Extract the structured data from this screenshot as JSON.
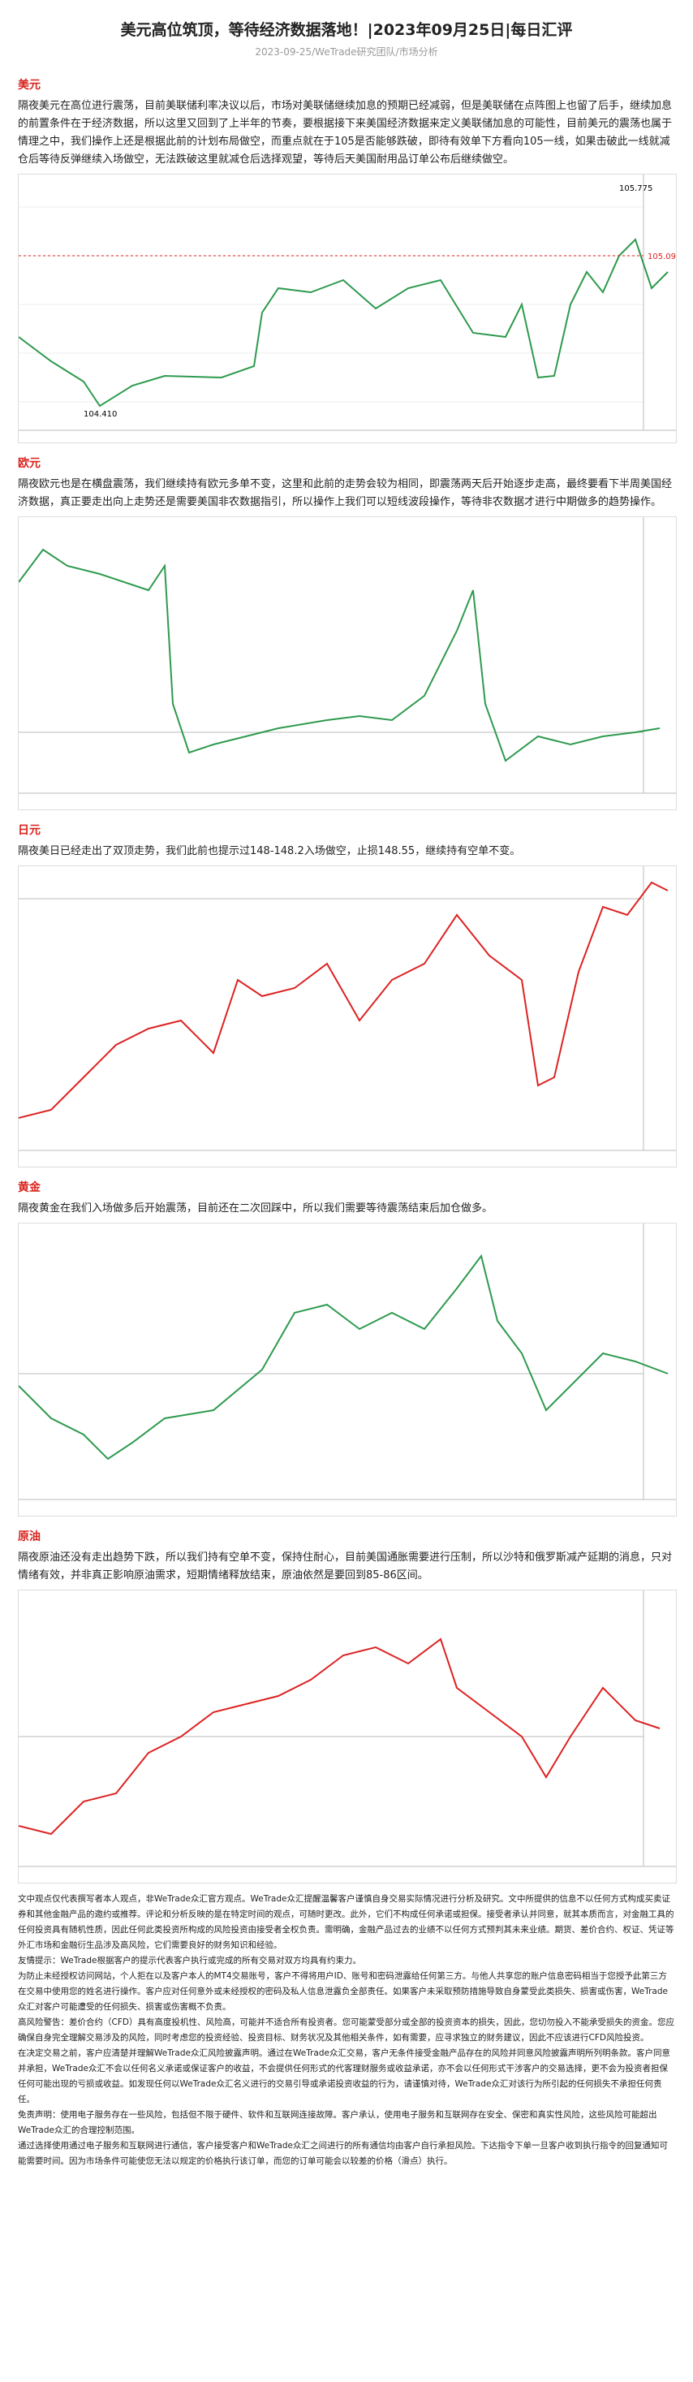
{
  "header": {
    "title": "美元高位筑顶，等待经济数据落地！|2023年09月25日|每日汇评",
    "subtitle": "2023-09-25/WeTrade研究团队/市场分析"
  },
  "sections": [
    {
      "heading": "美元",
      "text": "隔夜美元在高位进行震荡，目前美联储利率决议以后，市场对美联储继续加息的预期已经减弱，但是美联储在点阵图上也留了后手，继续加息的前置条件在于经济数据，所以这里又回到了上半年的节奏，要根据接下来美国经济数据来定义美联储加息的可能性，目前美元的震荡也属于情理之中，我们操作上还是根据此前的计划布局做空，而重点就在于105是否能够跌破，即待有效单下方看向105一线，如果击破此一线就减仓后等待反弹继续入场做空，无法跌破这里就减仓后选择观望，等待后天美国耐用品订单公布后继续做空。",
      "chart": {
        "high_label": "105.775",
        "low_label": "104.410",
        "last_label": "105.090"
      }
    },
    {
      "heading": "欧元",
      "text": "隔夜欧元也是在横盘震荡，我们继续持有欧元多单不变，这里和此前的走势会较为相同，即震荡两天后开始逐步走高，最终要看下半周美国经济数据，真正要走出向上走势还是需要美国非农数据指引，所以操作上我们可以短线波段操作，等待非农数据才进行中期做多的趋势操作。"
    },
    {
      "heading": "日元",
      "text": "隔夜美日已经走出了双顶走势，我们此前也提示过148-148.2入场做空，止损148.55，继续持有空单不变。"
    },
    {
      "heading": "黄金",
      "text": "隔夜黄金在我们入场做多后开始震荡，目前还在二次回踩中，所以我们需要等待震荡结束后加仓做多。"
    },
    {
      "heading": "原油",
      "text": "隔夜原油还没有走出趋势下跌，所以我们持有空单不变，保持住耐心，目前美国通胀需要进行压制，所以沙特和俄罗斯减产延期的消息，只对情绪有效，并非真正影响原油需求，短期情绪释放结束，原油依然是要回到85-86区间。"
    }
  ],
  "disclaimer": [
    "文中观点仅代表撰写者本人观点，非WeTrade众汇官方观点。WeTrade众汇提醒温馨客户谨慎自身交易实际情况进行分析及研究。文中所提供的信息不以任何方式构成买卖证券和其他金融产品的邀约或推荐。评论和分析反映的是在特定时间的观点，可随时更改。此外，它们不构成任何承诺或担保。接受者承认并同意，就其本质而言，对金融工具的任何投资具有随机性质，因此任何此类投资所构成的风险投资由接受者全权负责。需明确，金融产品过去的业绩不以任何方式预判其未来业绩。期货、差价合约、权证、凭证等外汇市场和金融衍生品涉及高风险，它们需要良好的财务知识和经验。",
    "友情提示：WeTrade根据客户的提示代表客户执行或完成的所有交易对双方均具有约束力。",
    "为防止未经授权访问网站，个人拒在以及客户本人的MT4交易账号，客户不得将用户ID、账号和密码泄露给任何第三方。与他人共享您的账户信息密码相当于您授予此第三方在交易中使用您的姓名进行操作。客户应对任何意外或未经授权的密码及私人信息泄露负全部责任。如果客户未采取预防措施导致自身蒙受此类损失、损害或伤害，WeTrade众汇对客户可能遭受的任何损失、损害或伤害概不负责。",
    "高风险警告：差价合约（CFD）具有高度投机性、风险高，可能并不适合所有投资者。您可能蒙受部分或全部的投资资本的损失，因此，您切勿投入不能承受损失的资金。您应确保自身完全理解交易涉及的风险，同时考虑您的投资经验、投资目标、财务状况及其他相关条件，如有需要，应寻求独立的财务建议，因此不应该进行CFD风险投资。",
    "在决定交易之前，客户应清楚并理解WeTrade众汇风险披露声明。通过在WeTrade众汇交易，客户无条件接受金融产品存在的风险并同意风险披露声明所列明条款。客户同意并承担，WeTrade众汇不会以任何名义承诺或保证客户的收益，不会提供任何形式的代客理财服务或收益承诺，亦不会以任何形式干涉客户的交易选择，更不会为投资者担保任何可能出现的亏损或收益。如发现任何以WeTrade众汇名义进行的交易引导或承诺投资收益的行为，请谨慎对待，WeTrade众汇对该行为所引起的任何损失不承担任何责任。",
    "免责声明：使用电子服务存在一些风险，包括但不限于硬件、软件和互联网连接故障。客户承认，使用电子服务和互联网存在安全、保密和真实性风险，这些风险可能超出WeTrade众汇的合理控制范围。",
    "通过选择使用通过电子服务和互联网进行通信，客户接受客户和WeTrade众汇之间进行的所有通信均由客户自行承担风险。下达指令下单一旦客户收到执行指令的回复通知可能需要时间。因为市场条件可能使您无法以规定的价格执行该订单，而您的订单可能会以较差的价格（滑点）执行。"
  ]
}
